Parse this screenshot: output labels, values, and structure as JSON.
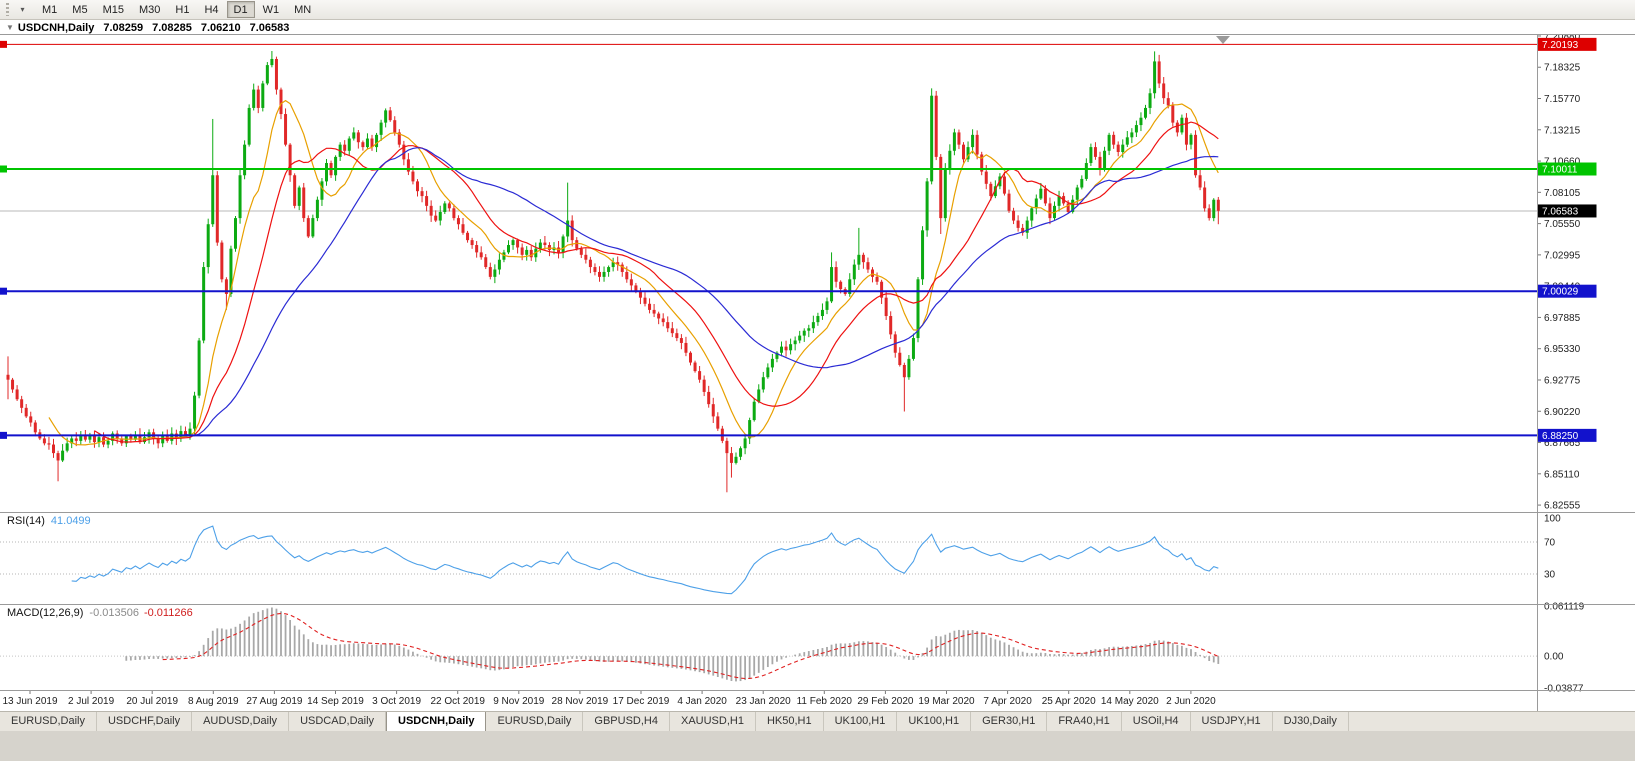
{
  "toolbar": {
    "menu_caret": "▾",
    "timeframes": [
      "M1",
      "M5",
      "M15",
      "M30",
      "H1",
      "H4",
      "D1",
      "W1",
      "MN"
    ],
    "active_timeframe": "D1"
  },
  "title_bar": {
    "one_click_arrow": "▼",
    "symbol_period": "USDCNH,Daily",
    "open": "7.08259",
    "high": "7.08285",
    "low": "7.06210",
    "close": "7.06583"
  },
  "chart_data": {
    "type": "candlestick",
    "title": "USDCNH Daily with RSI(14) and MACD(12,26,9)",
    "symbol": "USDCNH",
    "period": "Daily",
    "x_axis_labels": [
      "13 Jun 2019",
      "2 Jul 2019",
      "20 Jul 2019",
      "8 Aug 2019",
      "27 Aug 2019",
      "14 Sep 2019",
      "3 Oct 2019",
      "22 Oct 2019",
      "9 Nov 2019",
      "28 Nov 2019",
      "17 Dec 2019",
      "4 Jan 2020",
      "23 Jan 2020",
      "11 Feb 2020",
      "29 Feb 2020",
      "19 Mar 2020",
      "7 Apr 2020",
      "25 Apr 2020",
      "14 May 2020",
      "2 Jun 2020"
    ],
    "y_axis_ticks": [
      "7.20880",
      "7.18325",
      "7.15770",
      "7.13215",
      "7.10660",
      "7.08105",
      "7.05550",
      "7.02995",
      "7.00440",
      "6.97885",
      "6.95330",
      "6.92775",
      "6.90220",
      "6.87665",
      "6.85110",
      "6.82555"
    ],
    "ylim": [
      6.8199,
      7.2104
    ],
    "first_open": 6.932,
    "closes": [
      6.928,
      6.92,
      6.912,
      6.905,
      6.898,
      6.893,
      6.885,
      6.88,
      6.876,
      6.875,
      6.868,
      6.862,
      6.87,
      6.876,
      6.88,
      6.878,
      6.883,
      6.879,
      6.882,
      6.877,
      6.881,
      6.875,
      6.878,
      6.884,
      6.88,
      6.876,
      6.882,
      6.879,
      6.883,
      6.877,
      6.881,
      6.885,
      6.88,
      6.876,
      6.882,
      6.878,
      6.884,
      6.88,
      6.886,
      6.883,
      6.888,
      6.915,
      6.96,
      7.02,
      7.055,
      7.095,
      7.04,
      7.01,
      6.998,
      7.035,
      7.06,
      7.095,
      7.12,
      7.15,
      7.165,
      7.15,
      7.17,
      7.185,
      7.19,
      7.165,
      7.145,
      7.12,
      7.095,
      7.07,
      7.085,
      7.06,
      7.045,
      7.06,
      7.075,
      7.09,
      7.105,
      7.095,
      7.11,
      7.12,
      7.115,
      7.125,
      7.13,
      7.122,
      7.118,
      7.125,
      7.118,
      7.128,
      7.138,
      7.148,
      7.14,
      7.13,
      7.12,
      7.108,
      7.098,
      7.09,
      7.082,
      7.078,
      7.07,
      7.062,
      7.058,
      7.065,
      7.072,
      7.068,
      7.06,
      7.055,
      7.048,
      7.042,
      7.038,
      7.032,
      7.028,
      7.02,
      7.012,
      7.018,
      7.026,
      7.032,
      7.038,
      7.042,
      7.036,
      7.03,
      7.034,
      7.028,
      7.035,
      7.04,
      7.038,
      7.034,
      7.036,
      7.032,
      7.045,
      7.058,
      7.042,
      7.035,
      7.03,
      7.026,
      7.02,
      7.016,
      7.012,
      7.016,
      7.02,
      7.024,
      7.022,
      7.016,
      7.01,
      7.005,
      7.0,
      6.995,
      6.99,
      6.985,
      6.982,
      6.978,
      6.975,
      6.97,
      6.966,
      6.962,
      6.958,
      6.95,
      6.942,
      6.935,
      6.928,
      6.918,
      6.908,
      6.898,
      6.888,
      6.878,
      6.868,
      6.86,
      6.865,
      6.872,
      6.88,
      6.895,
      6.91,
      6.92,
      6.93,
      6.938,
      6.945,
      6.95,
      6.955,
      6.952,
      6.957,
      6.96,
      6.964,
      6.968,
      6.97,
      6.975,
      6.98,
      6.985,
      6.992,
      7.02,
      7.008,
      7.002,
      6.998,
      7.01,
      7.022,
      7.03,
      7.024,
      7.018,
      7.012,
      7.008,
      6.995,
      6.98,
      6.965,
      6.95,
      6.94,
      6.93,
      6.945,
      6.962,
      7.01,
      7.05,
      7.09,
      7.16,
      7.11,
      7.06,
      7.1,
      7.115,
      7.13,
      7.12,
      7.108,
      7.118,
      7.128,
      7.112,
      7.098,
      7.088,
      7.078,
      7.086,
      7.094,
      7.08,
      7.066,
      7.058,
      7.052,
      7.048,
      7.058,
      7.068,
      7.076,
      7.084,
      7.072,
      7.06,
      7.07,
      7.078,
      7.072,
      7.065,
      7.075,
      7.085,
      7.092,
      7.105,
      7.118,
      7.11,
      7.1,
      7.115,
      7.128,
      7.12,
      7.114,
      7.12,
      7.126,
      7.13,
      7.136,
      7.142,
      7.15,
      7.162,
      7.188,
      7.17,
      7.158,
      7.152,
      7.138,
      7.13,
      7.142,
      7.12,
      7.128,
      7.095,
      7.085,
      7.068,
      7.06,
      7.075,
      7.066
    ],
    "extremes": {
      "0": {
        "h": 6.947,
        "l": 6.912
      },
      "11": {
        "l": 6.845
      },
      "45": {
        "h": 7.141
      },
      "48": {
        "l": 6.985
      },
      "58": {
        "h": 7.1965
      },
      "123": {
        "h": 7.089
      },
      "158": {
        "l": 6.836
      },
      "159": {
        "l": 6.848
      },
      "181": {
        "h": 7.032
      },
      "187": {
        "h": 7.052
      },
      "197": {
        "l": 6.902
      },
      "203": {
        "h": 7.166
      },
      "205": {
        "l": 7.047
      },
      "252": {
        "h": 7.1962
      },
      "266": {
        "l": 7.055
      }
    },
    "candle_colors": {
      "bull": "#0caa12",
      "bear": "#e02828"
    },
    "moving_averages": [
      {
        "period": 10,
        "color": "#e8a000"
      },
      {
        "period": 20,
        "color": "#ee1111"
      },
      {
        "period": 40,
        "color": "#2b2bd4"
      }
    ],
    "horizontal_lines": [
      {
        "price": 7.20193,
        "label": "7.20193",
        "color": "#dd0000",
        "width": 1
      },
      {
        "price": 7.10011,
        "label": "7.10011",
        "color": "#00c400",
        "width": 2
      },
      {
        "price": 7.00029,
        "label": "7.00029",
        "color": "#1212cc",
        "width": 2
      },
      {
        "price": 6.8825,
        "label": "6.88250",
        "color": "#1212cc",
        "width": 2
      }
    ],
    "bid_line": {
      "price": 7.06583,
      "label": "7.06583",
      "line_color": "#b8b8b8",
      "label_color": "#000000"
    },
    "indicators": {
      "rsi": {
        "label": "RSI(14)",
        "value": "41.0499",
        "color": "#4da0e8",
        "levels": [
          {
            "label": "100",
            "value": 100
          },
          {
            "label": "70",
            "value": 70
          },
          {
            "label": "30",
            "value": 30
          }
        ],
        "dotted_levels": [
          70,
          30
        ],
        "range": [
          -5,
          105
        ]
      },
      "macd": {
        "label": "MACD(12,26,9)",
        "main_value": "-0.013506",
        "signal_value": "-0.011266",
        "histogram_color": "#a8a8a8",
        "signal_color": "#e02020",
        "axis": [
          {
            "label": "0.061119",
            "value": 0.061119
          },
          {
            "label": "0.00",
            "value": 0
          },
          {
            "label": "-0.03877",
            "value": -0.03877
          }
        ],
        "range": [
          -0.03877,
          0.061119
        ]
      }
    }
  },
  "tabs": {
    "active_index": 4,
    "items": [
      "EURUSD,Daily",
      "USDCHF,Daily",
      "AUDUSD,Daily",
      "USDCAD,Daily",
      "USDCNH,Daily",
      "EURUSD,Daily",
      "GBPUSD,H4",
      "XAUUSD,H1",
      "HK50,H1",
      "UK100,H1",
      "UK100,H1",
      "GER30,H1",
      "FRA40,H1",
      "USOil,H4",
      "USDJPY,H1",
      "DJ30,Daily"
    ]
  }
}
